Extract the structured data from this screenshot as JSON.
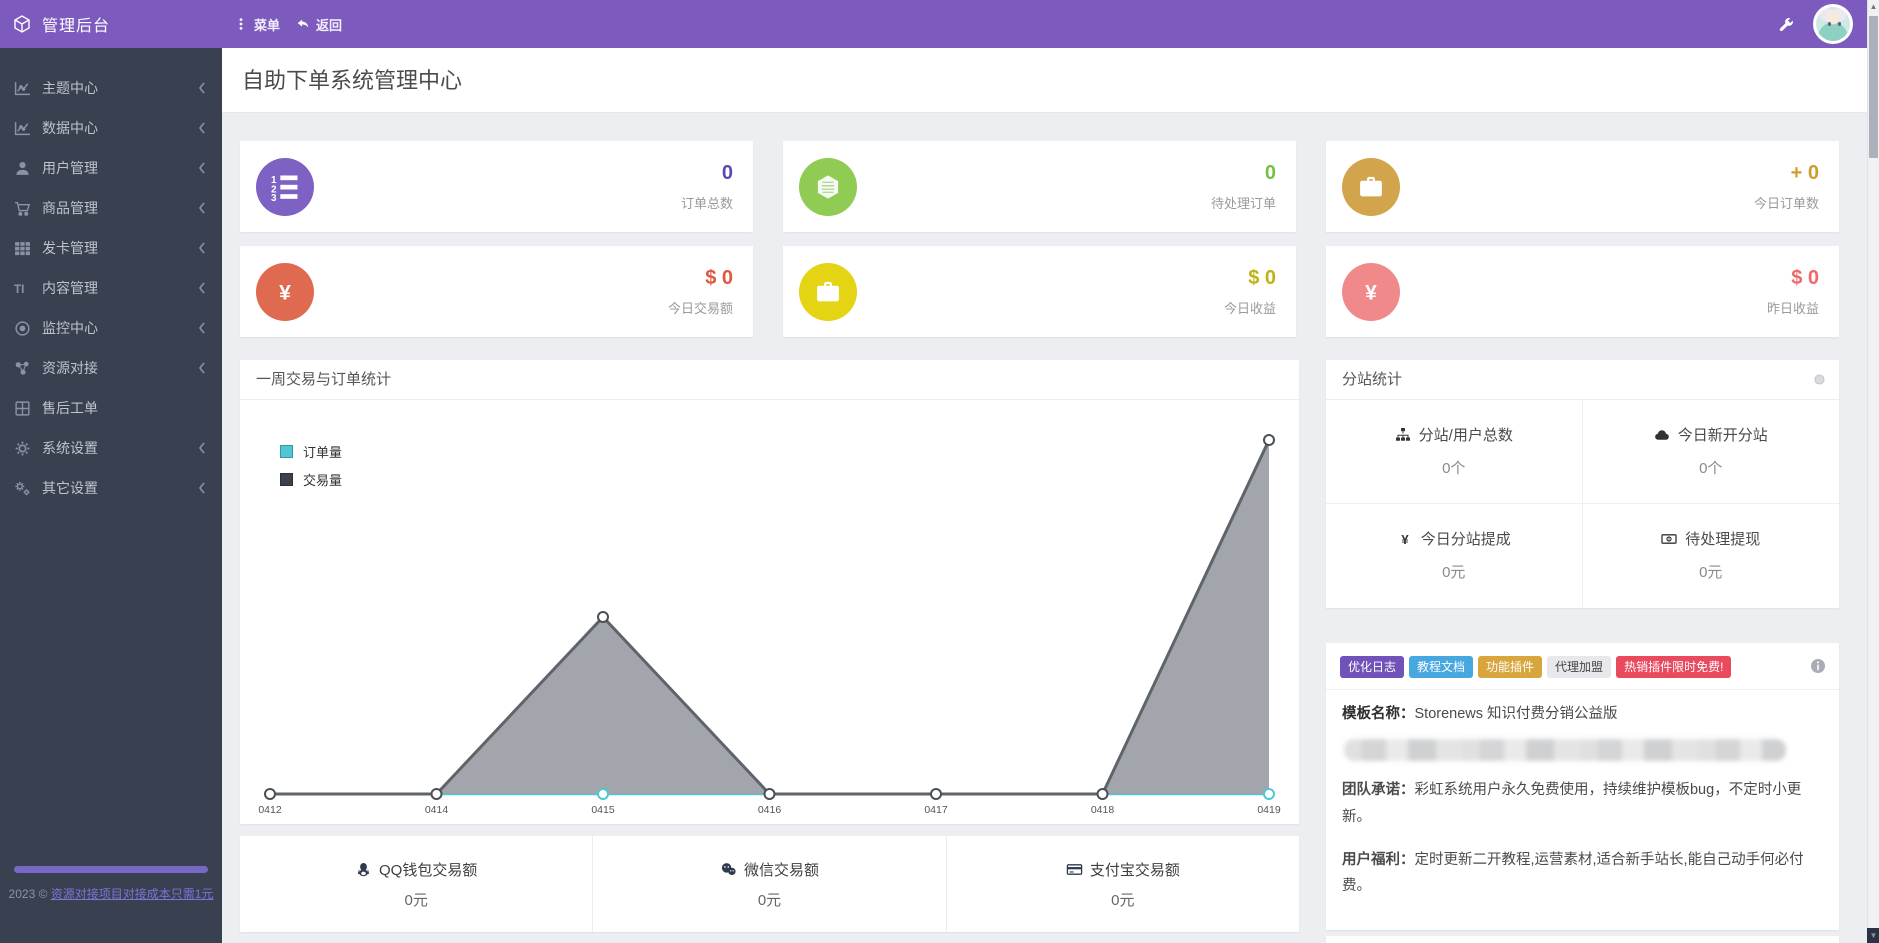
{
  "topbar": {
    "title": "管理后台",
    "logo_icon": "cube-icon",
    "menu_label": "菜单",
    "menu_icon": "dots-vertical-icon",
    "back_label": "返回",
    "back_icon": "back-arrow-icon",
    "wrench_icon": "wrench-icon",
    "accent_color": "#7d5bbe"
  },
  "page": {
    "title": "自助下单系统管理中心"
  },
  "sidebar": {
    "items": [
      {
        "label": "主题中心",
        "icon": "line-chart-icon",
        "chevron": true
      },
      {
        "label": "数据中心",
        "icon": "line-chart-icon",
        "chevron": true
      },
      {
        "label": "用户管理",
        "icon": "user-icon",
        "chevron": true
      },
      {
        "label": "商品管理",
        "icon": "cart-icon",
        "chevron": true
      },
      {
        "label": "发卡管理",
        "icon": "grid-icon",
        "chevron": true
      },
      {
        "label": "内容管理",
        "icon": "text-icon",
        "chevron": true
      },
      {
        "label": "监控中心",
        "icon": "target-icon",
        "chevron": true
      },
      {
        "label": "资源对接",
        "icon": "share-nodes-icon",
        "chevron": true
      },
      {
        "label": "售后工单",
        "icon": "grid-plus-icon",
        "chevron": false
      },
      {
        "label": "系统设置",
        "icon": "gear-icon",
        "chevron": true
      },
      {
        "label": "其它设置",
        "icon": "gears-icon",
        "chevron": true
      }
    ],
    "footer": {
      "year_text": "2023 ©",
      "link_text": "资源对接项目对接成本只需1元"
    }
  },
  "stat_cards": [
    {
      "value": "0",
      "label": "订单总数",
      "value_color": "#5b48b3",
      "icon": "ordered-list-icon",
      "icon_bg": "#7d62c4"
    },
    {
      "value": "0",
      "label": "待处理订单",
      "value_color": "#76c043",
      "icon": "hexagon-icon",
      "icon_bg": "#90cc53"
    },
    {
      "value": "+ 0",
      "label": "今日订单数",
      "value_color": "#cf9d2e",
      "icon": "briefcase-icon",
      "icon_bg": "#d2a44b"
    },
    {
      "value": "$ 0",
      "label": "今日交易额",
      "value_color": "#df5740",
      "icon": "yen-icon",
      "icon_bg": "#e06a50"
    },
    {
      "value": "$ 0",
      "label": "今日收益",
      "value_color": "#c0b215",
      "icon": "briefcase-icon",
      "icon_bg": "#e4d414"
    },
    {
      "value": "$ 0",
      "label": "昨日收益",
      "value_color": "#ee6a6a",
      "icon": "yen-icon",
      "icon_bg": "#f08a8a"
    }
  ],
  "chart_panel": {
    "title": "一周交易与订单统计"
  },
  "chart_data": {
    "type": "area",
    "title": "一周交易与订单统计",
    "x": [
      "0412",
      "0414",
      "0415",
      "0416",
      "0417",
      "0418",
      "0419"
    ],
    "series": [
      {
        "name": "订单量",
        "values": [
          0,
          0,
          0,
          0,
          0,
          0,
          0
        ],
        "line_color": "#4ec7d6",
        "legend_color": "#4ec7d6"
      },
      {
        "name": "交易量",
        "values": [
          0,
          0,
          1,
          0,
          0,
          0,
          2
        ],
        "line_color": "#5f646b",
        "fill_color": "#9da1a8",
        "legend_color": "#3b4148"
      }
    ],
    "ylim": [
      0,
      2.2
    ],
    "grid": false,
    "legend_position": "top-left"
  },
  "payment_stats": [
    {
      "icon": "qq-icon",
      "label": "QQ钱包交易额",
      "value": "0元"
    },
    {
      "icon": "wechat-icon",
      "label": "微信交易额",
      "value": "0元"
    },
    {
      "icon": "credit-card-icon",
      "label": "支付宝交易额",
      "value": "0元"
    }
  ],
  "substation_panel": {
    "title": "分站统计",
    "indicator_icon": "circle-indicator-icon",
    "cells": [
      {
        "icon": "sitemap-icon",
        "label": "分站/用户总数",
        "value": "0个"
      },
      {
        "icon": "cloud-icon",
        "label": "今日新开分站",
        "value": "0个"
      },
      {
        "icon": "yen-text-icon",
        "label": "今日分站提成",
        "value": "0元"
      },
      {
        "icon": "banknote-icon",
        "label": "待处理提现",
        "value": "0元"
      }
    ]
  },
  "info_panel": {
    "info_icon": "info-icon",
    "tags": [
      {
        "label": "优化日志",
        "bg": "#7152b8",
        "color": "#ffffff"
      },
      {
        "label": "教程文档",
        "bg": "#47a7e0",
        "color": "#ffffff"
      },
      {
        "label": "功能插件",
        "bg": "#d9a63e",
        "color": "#ffffff"
      },
      {
        "label": "代理加盟",
        "bg": "#e8e8ec",
        "color": "#444444"
      },
      {
        "label": "热销插件限时免费!",
        "bg": "#e94a5e",
        "color": "#ffffff"
      }
    ],
    "template_label": "模板名称：",
    "template_name": "Storenews 知识付费分销公益版",
    "promise_label": "团队承诺：",
    "promise_text": "彩虹系统用户永久免费使用，持续维护模板bug，不定时小更新。",
    "benefit_label": "用户福利：",
    "benefit_text": "定时更新二开教程,运营素材,适合新手站长,能自己动手何必付费。"
  }
}
